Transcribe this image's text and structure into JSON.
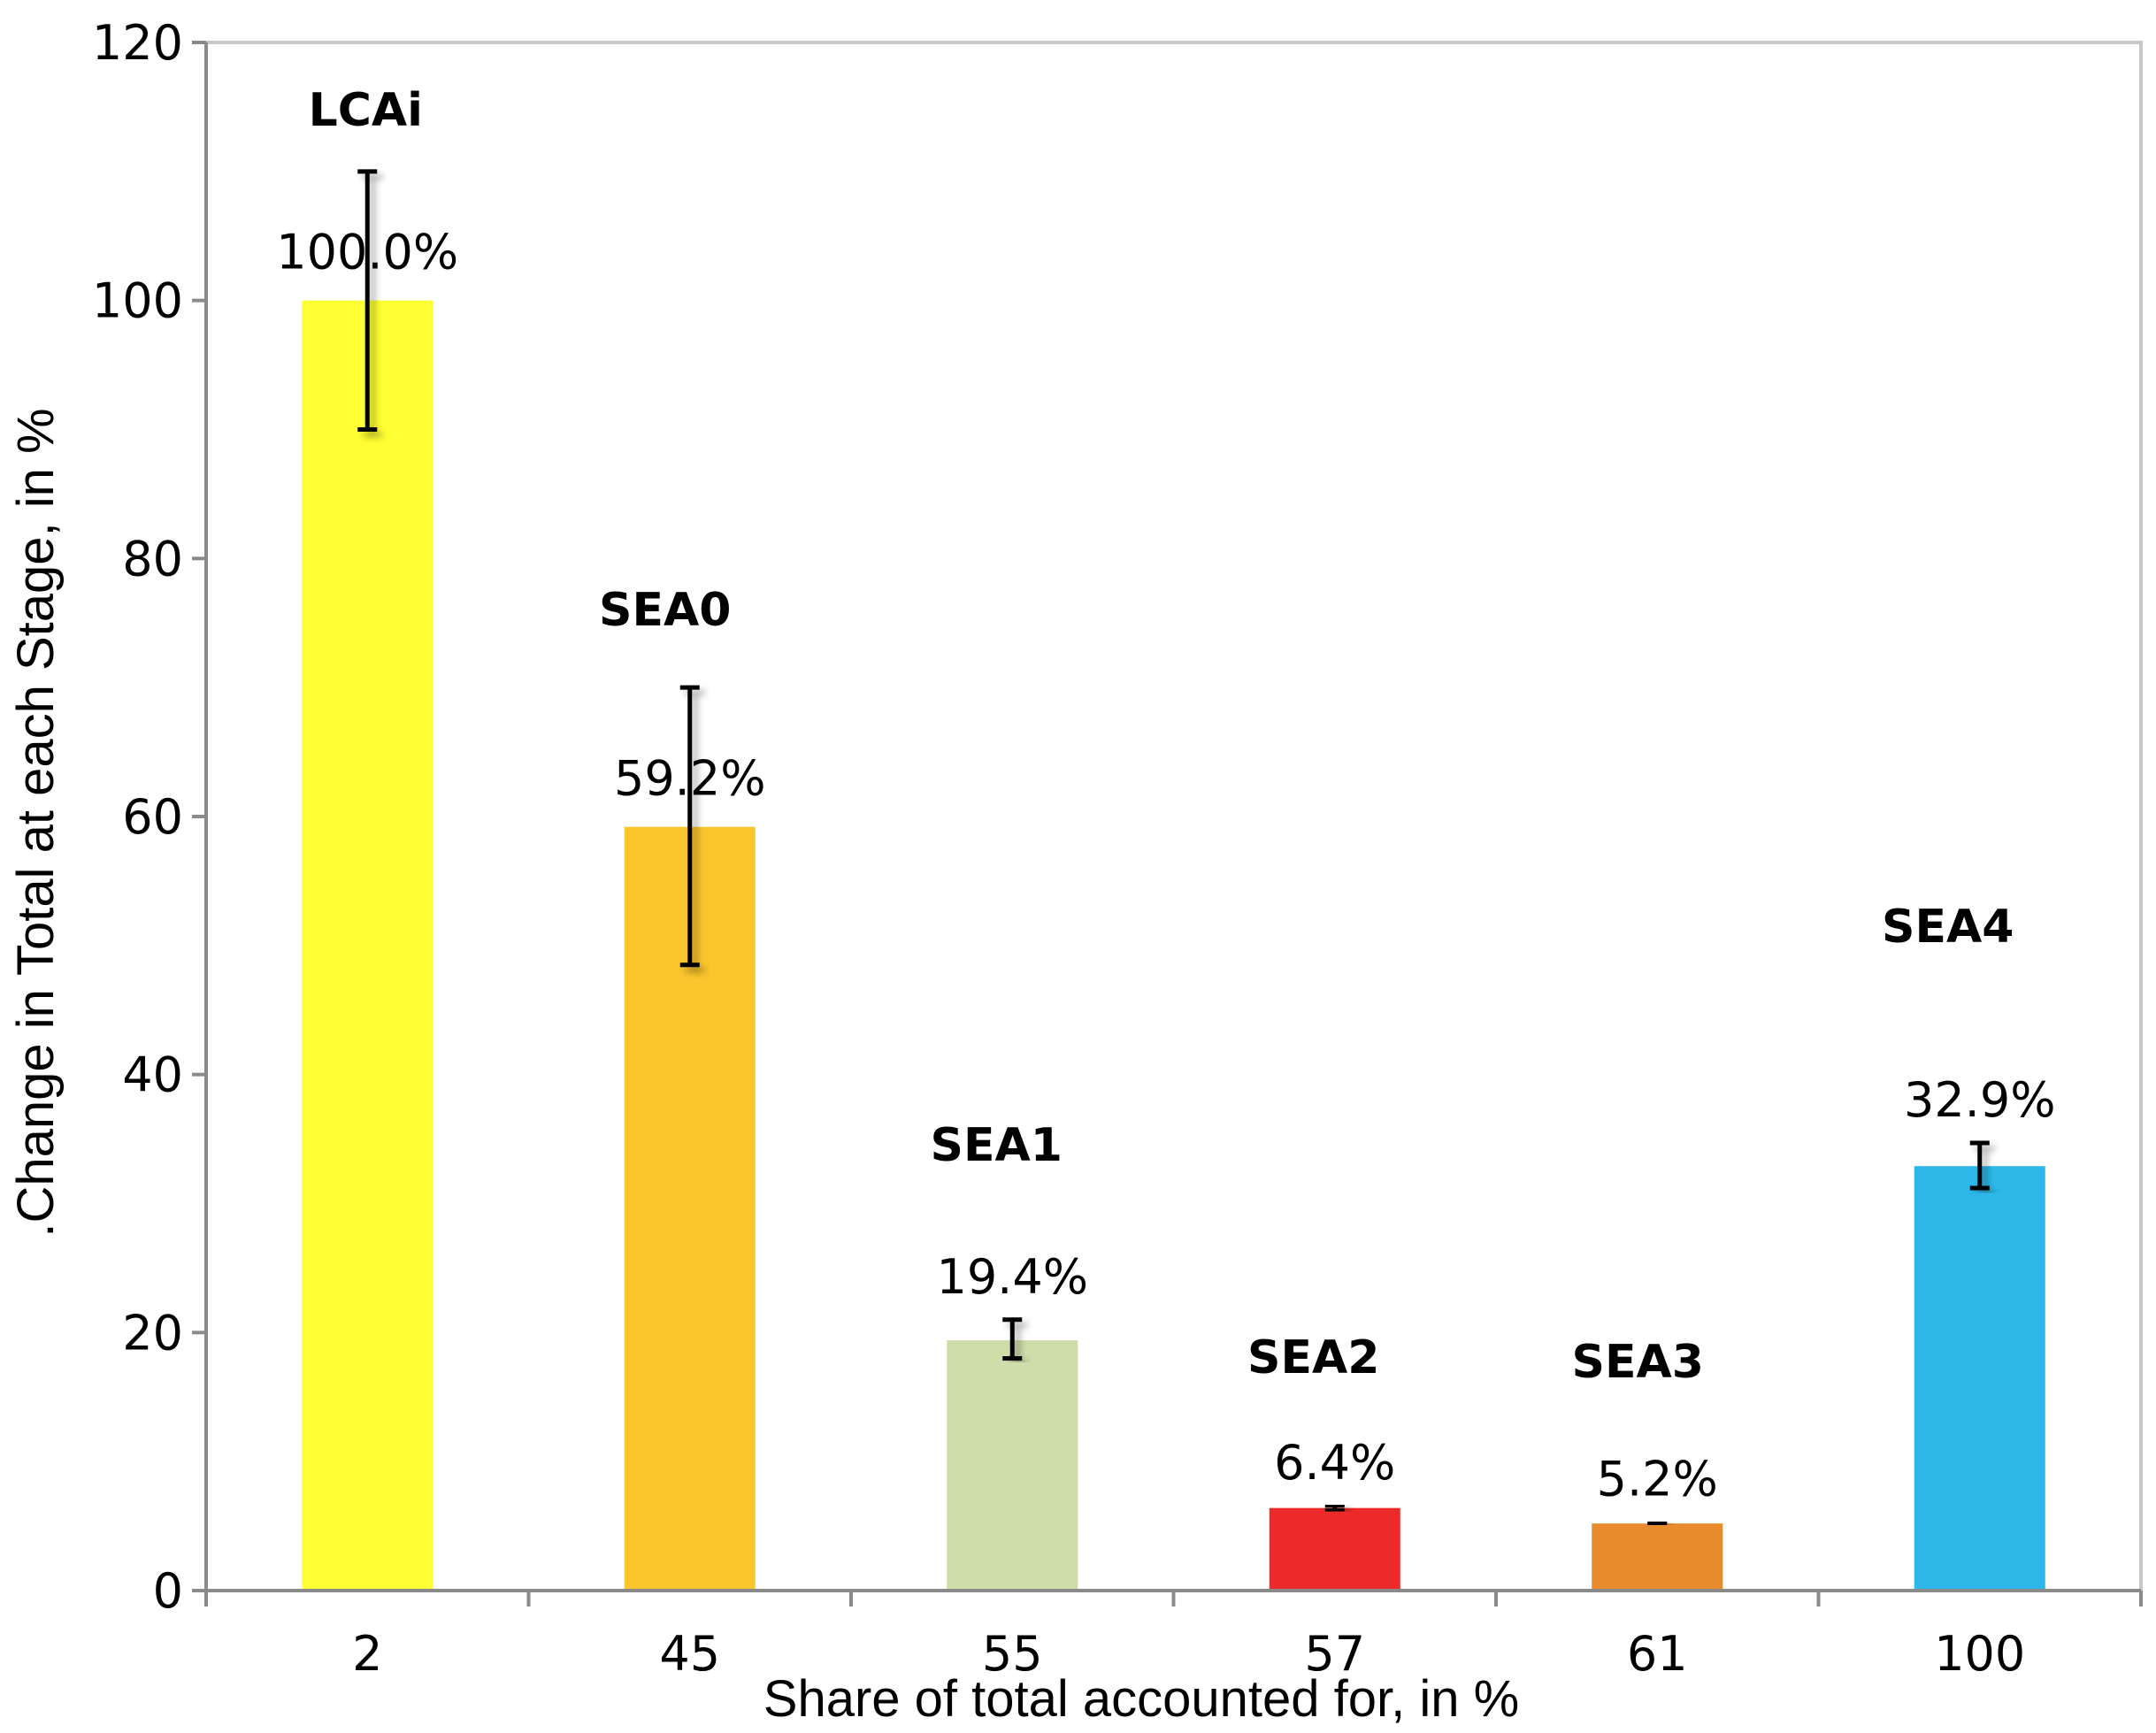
{
  "chart_data": {
    "type": "bar",
    "title": "",
    "xlabel": "Share of total accounted for, in %",
    "ylabel": ".Change in Total at each Stage, in %",
    "ylim": [
      0,
      120
    ],
    "yticks": [
      0,
      20,
      40,
      60,
      80,
      100,
      120
    ],
    "grid": false,
    "legend": "none",
    "categories": [
      "2",
      "45",
      "55",
      "57",
      "61",
      "100"
    ],
    "stage_labels": [
      "LCAi",
      "SEA0",
      "SEA1",
      "SEA2",
      "SEA3",
      "SEA4"
    ],
    "values": [
      100.0,
      59.2,
      19.4,
      6.4,
      5.2,
      32.9
    ],
    "value_labels": [
      "100.0%",
      "59.2%",
      "19.4%",
      "6.4%",
      "5.2%",
      "32.9%"
    ],
    "error_low": [
      90,
      48.5,
      18,
      6.2,
      5.1,
      31.2
    ],
    "error_high": [
      110,
      70,
      21,
      6.6,
      5.3,
      34.7
    ],
    "colors": [
      "#FFFF33",
      "#FBC52D",
      "#CEDDAA",
      "#ED2A2A",
      "#E88B2C",
      "#2DB7E8"
    ]
  }
}
